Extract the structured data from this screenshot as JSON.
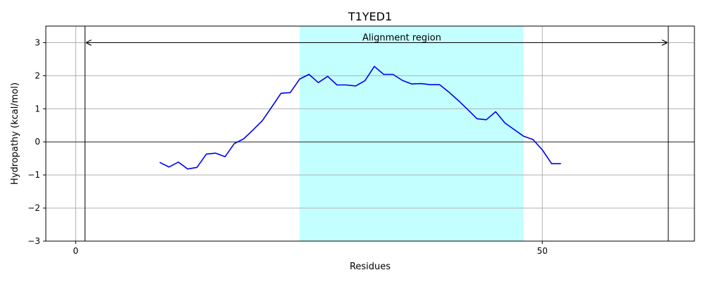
{
  "chart_data": {
    "type": "line",
    "title": "T1YED1",
    "xlabel": "Residues",
    "ylabel": "Hydropathy (kcal/mol)",
    "xlim": [
      -3.2,
      66.3
    ],
    "ylim": [
      -3,
      3.5
    ],
    "x_ticks": [
      0,
      50
    ],
    "y_ticks": [
      -3,
      -2,
      -1,
      0,
      1,
      2,
      3
    ],
    "grid": true,
    "colors": {
      "line": "#0000ee",
      "region_fill": "#c4ffff",
      "axes": "#000000",
      "grid": "#b0b0b0"
    },
    "alignment_region": {
      "label": "Alignment region",
      "highlight_start": 24,
      "highlight_end": 48,
      "bounds": [
        1,
        63.5
      ],
      "arrow_y": 3
    },
    "series": [
      {
        "x": [
          9,
          10,
          11,
          12,
          13,
          14,
          15,
          16,
          17,
          18,
          19,
          20,
          21,
          22,
          23,
          24,
          25,
          26,
          27,
          28,
          29,
          30,
          31,
          32,
          33,
          34,
          35,
          36,
          37,
          38,
          39,
          40,
          41,
          42,
          43,
          44,
          45,
          46,
          47,
          48,
          49,
          50,
          51,
          52
        ],
        "values": [
          -0.62,
          -0.76,
          -0.61,
          -0.82,
          -0.77,
          -0.37,
          -0.34,
          -0.45,
          -0.05,
          0.09,
          0.36,
          0.64,
          1.05,
          1.47,
          1.49,
          1.9,
          2.04,
          1.79,
          1.98,
          1.72,
          1.72,
          1.69,
          1.85,
          2.28,
          2.04,
          2.04,
          1.86,
          1.75,
          1.76,
          1.73,
          1.73,
          1.5,
          1.25,
          0.98,
          0.7,
          0.67,
          0.91,
          0.57,
          0.37,
          0.17,
          0.07,
          -0.24,
          -0.66,
          -0.66
        ]
      }
    ]
  }
}
